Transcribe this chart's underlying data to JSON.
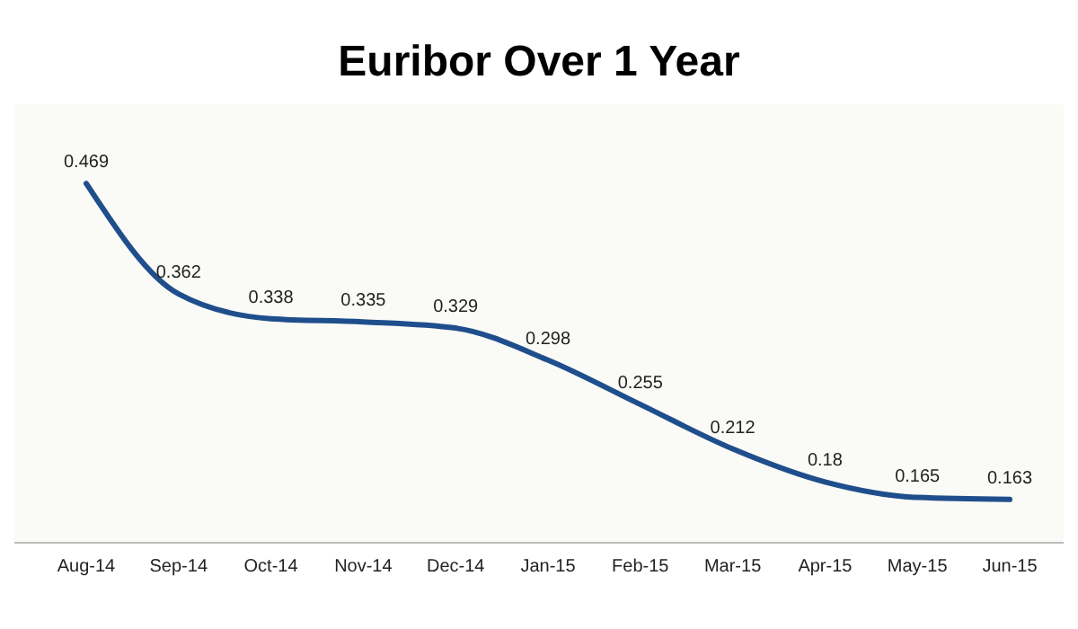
{
  "chart_data": {
    "type": "line",
    "title": "Euribor Over 1 Year",
    "categories": [
      "Aug-14",
      "Sep-14",
      "Oct-14",
      "Nov-14",
      "Dec-14",
      "Jan-15",
      "Feb-15",
      "Mar-15",
      "Apr-15",
      "May-15",
      "Jun-15"
    ],
    "series": [
      {
        "color": "#1f4e8c",
        "values": [
          0.469,
          0.362,
          0.338,
          0.335,
          0.329,
          0.298,
          0.255,
          0.212,
          0.18,
          0.165,
          0.163
        ]
      }
    ],
    "data_labels": true,
    "marker": "none",
    "line_style": "solid"
  }
}
